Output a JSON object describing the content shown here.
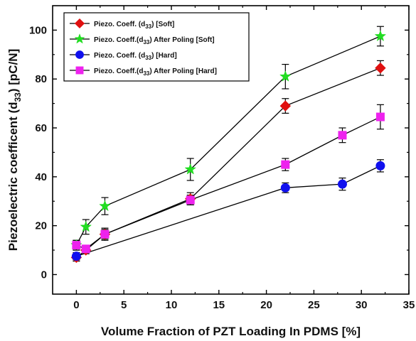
{
  "chart_data": {
    "type": "line",
    "title": "",
    "xlabel": "Volume Fraction of PZT Loading In PDMS [%]",
    "ylabel": "Piezoelectric coefficent (d33) [pC/N]",
    "xlim": [
      -2.5,
      35
    ],
    "ylim": [
      -8,
      110
    ],
    "xticks": [
      0,
      5,
      10,
      15,
      20,
      25,
      30,
      35
    ],
    "yticks": [
      0,
      20,
      40,
      60,
      80,
      100
    ],
    "legend_position": "top-left",
    "grid": false,
    "series": [
      {
        "name": "Piezo. Coeff. (d33) [Soft]",
        "name_parts": [
          "Piezo. Coeff. (d",
          "33",
          ") [Soft]"
        ],
        "color": "#e01010",
        "marker": "diamond",
        "x": [
          0,
          1,
          3,
          12,
          22,
          32
        ],
        "y": [
          7,
          10,
          16.5,
          31,
          69,
          84.5
        ],
        "err": [
          1.5,
          1.5,
          2.5,
          2.5,
          3,
          3
        ]
      },
      {
        "name": "Piezo. Coeff.(d33) After Poling [Soft]",
        "name_parts": [
          "Piezo. Coeff.(d",
          "33",
          ") After Poling [Soft]"
        ],
        "color": "#22dd22",
        "marker": "star",
        "x": [
          0,
          1,
          3,
          12,
          22,
          32
        ],
        "y": [
          12,
          19.5,
          28,
          43,
          81,
          97.5
        ],
        "err": [
          2,
          3,
          3.5,
          4.5,
          5,
          4
        ]
      },
      {
        "name": "Piezo. Coeff. (d33) [Hard]",
        "name_parts": [
          "Piezo. Coeff. (d",
          "33",
          ") [Hard]"
        ],
        "color": "#1010ee",
        "marker": "circle",
        "x": [
          0,
          22,
          28,
          32
        ],
        "y": [
          7.5,
          35.5,
          37,
          44.5
        ],
        "err": [
          1.5,
          2,
          2.5,
          2.5
        ]
      },
      {
        "name": "Piezo. Coeff.(d33) After Poling [Hard]",
        "name_parts": [
          "Piezo. Coeff.(d",
          "33",
          ") After Poling [Hard]"
        ],
        "color": "#ee22ee",
        "marker": "square",
        "x": [
          0,
          1,
          3,
          12,
          22,
          28,
          32
        ],
        "y": [
          12,
          10.5,
          16.5,
          30.5,
          45,
          57,
          64.5
        ],
        "err": [
          2,
          1.5,
          2,
          2,
          2.5,
          3,
          5
        ]
      }
    ],
    "ylabel_parts": [
      "Piezoelectric coefficent (d",
      "33",
      ")  [pC/N]"
    ]
  }
}
